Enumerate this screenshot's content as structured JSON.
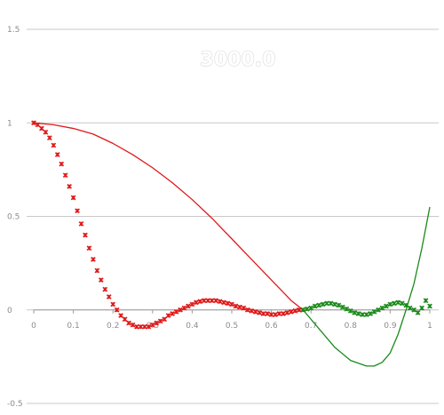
{
  "chart_data": {
    "type": "line",
    "title": "3000.0",
    "xlabel": "",
    "ylabel": "",
    "xlim": [
      0,
      1
    ],
    "ylim": [
      -0.5,
      1.5
    ],
    "grid": true,
    "legend": "none",
    "y_ticks": [
      {
        "value": 1.5,
        "label": "1.5"
      },
      {
        "value": 1.0,
        "label": "1"
      },
      {
        "value": 0.5,
        "label": "0.5"
      },
      {
        "value": 0.0,
        "label": "0"
      },
      {
        "value": -0.5,
        "label": "-0.5"
      }
    ],
    "x_ticks": [
      {
        "value": 0.0,
        "label": "0"
      },
      {
        "value": 0.1,
        "label": "0.1"
      },
      {
        "value": 0.2,
        "label": "0.2"
      },
      {
        "value": 0.3,
        "label": "0.3"
      },
      {
        "value": 0.4,
        "label": "0.4"
      },
      {
        "value": 0.5,
        "label": "0.5"
      },
      {
        "value": 0.6,
        "label": "0.6"
      },
      {
        "value": 0.7,
        "label": "0.7"
      },
      {
        "value": 0.8,
        "label": "0.8"
      },
      {
        "value": 0.9,
        "label": "0.9"
      },
      {
        "value": 1.0,
        "label": "1"
      }
    ],
    "colors": {
      "red": "#e01818",
      "green": "#1a8a1a",
      "grid": "#c9c9c9",
      "axis": "#9a9a9a",
      "tick": "#8c8c8c"
    },
    "series": [
      {
        "style": "line",
        "color": "#e01818",
        "x": [
          0,
          0.05,
          0.1,
          0.15,
          0.2,
          0.25,
          0.3,
          0.35,
          0.4,
          0.45,
          0.5,
          0.55,
          0.6,
          0.65,
          0.68
        ],
        "y": [
          1.0,
          0.99,
          0.97,
          0.94,
          0.89,
          0.83,
          0.76,
          0.68,
          0.59,
          0.49,
          0.38,
          0.27,
          0.16,
          0.05,
          0.0
        ]
      },
      {
        "style": "line",
        "color": "#1a8a1a",
        "x": [
          0.68,
          0.72,
          0.76,
          0.8,
          0.84,
          0.86,
          0.88,
          0.9,
          0.92,
          0.94,
          0.96,
          0.98,
          1.0
        ],
        "y": [
          0.0,
          -0.1,
          -0.2,
          -0.27,
          -0.3,
          -0.3,
          -0.28,
          -0.23,
          -0.13,
          0.0,
          0.14,
          0.33,
          0.55
        ]
      },
      {
        "style": "markers",
        "color": "#e01818",
        "x": [
          0.0,
          0.01,
          0.02,
          0.03,
          0.04,
          0.05,
          0.06,
          0.07,
          0.08,
          0.09,
          0.1,
          0.11,
          0.12,
          0.13,
          0.14,
          0.15,
          0.16,
          0.17,
          0.18,
          0.19,
          0.2,
          0.21,
          0.22,
          0.23,
          0.24,
          0.25,
          0.26,
          0.27,
          0.28,
          0.29,
          0.3,
          0.31,
          0.32,
          0.33,
          0.34,
          0.35,
          0.36,
          0.37,
          0.38,
          0.39,
          0.4,
          0.41,
          0.42,
          0.43,
          0.44,
          0.45,
          0.46,
          0.47,
          0.48,
          0.49,
          0.5,
          0.51,
          0.52,
          0.53,
          0.54,
          0.55,
          0.56,
          0.57,
          0.58,
          0.59,
          0.6,
          0.61,
          0.62,
          0.63,
          0.64,
          0.65,
          0.66,
          0.67,
          0.68
        ],
        "y": [
          1.0,
          0.99,
          0.97,
          0.95,
          0.92,
          0.88,
          0.83,
          0.78,
          0.72,
          0.66,
          0.6,
          0.53,
          0.46,
          0.4,
          0.33,
          0.27,
          0.21,
          0.16,
          0.11,
          0.07,
          0.03,
          0.0,
          -0.03,
          -0.05,
          -0.07,
          -0.08,
          -0.09,
          -0.09,
          -0.09,
          -0.09,
          -0.08,
          -0.07,
          -0.06,
          -0.05,
          -0.03,
          -0.02,
          -0.01,
          0.0,
          0.01,
          0.02,
          0.03,
          0.04,
          0.045,
          0.05,
          0.05,
          0.05,
          0.05,
          0.045,
          0.04,
          0.035,
          0.03,
          0.02,
          0.015,
          0.01,
          0.0,
          -0.005,
          -0.01,
          -0.015,
          -0.02,
          -0.02,
          -0.025,
          -0.025,
          -0.02,
          -0.02,
          -0.015,
          -0.01,
          -0.005,
          0.0,
          0.0
        ]
      },
      {
        "style": "markers",
        "color": "#1a8a1a",
        "x": [
          0.68,
          0.69,
          0.7,
          0.71,
          0.72,
          0.73,
          0.74,
          0.75,
          0.76,
          0.77,
          0.78,
          0.79,
          0.8,
          0.81,
          0.82,
          0.83,
          0.84,
          0.85,
          0.86,
          0.87,
          0.88,
          0.89,
          0.9,
          0.91,
          0.92,
          0.93,
          0.94,
          0.95,
          0.96,
          0.97,
          0.98,
          0.99,
          1.0
        ],
        "y": [
          0.0,
          0.005,
          0.01,
          0.02,
          0.025,
          0.03,
          0.035,
          0.035,
          0.03,
          0.025,
          0.015,
          0.005,
          -0.005,
          -0.015,
          -0.02,
          -0.025,
          -0.025,
          -0.02,
          -0.01,
          0.0,
          0.01,
          0.02,
          0.03,
          0.035,
          0.04,
          0.035,
          0.025,
          0.01,
          0.0,
          -0.015,
          0.01,
          0.05,
          0.02
        ]
      }
    ]
  }
}
